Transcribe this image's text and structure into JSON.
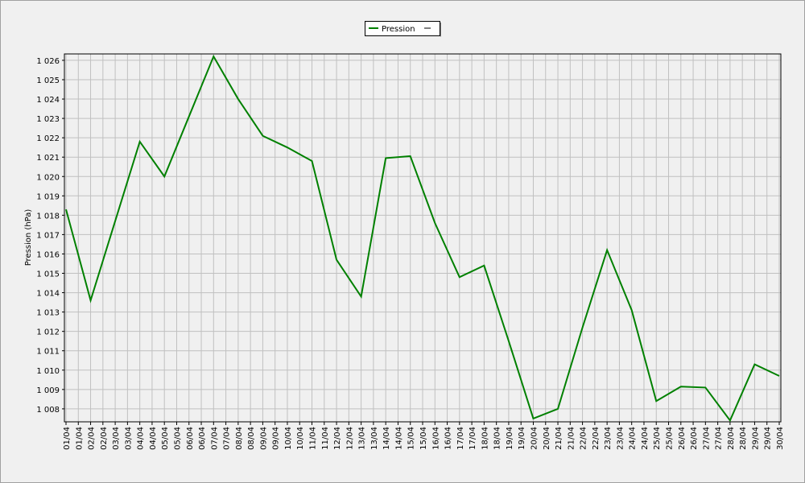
{
  "chart_data": {
    "type": "line",
    "ylabel": "Pression (hPa)",
    "x": [
      "01/04",
      "02/04",
      "03/04",
      "04/04",
      "05/04",
      "06/04",
      "07/04",
      "08/04",
      "09/04",
      "10/04",
      "11/04",
      "12/04",
      "13/04",
      "14/04",
      "15/04",
      "16/04",
      "17/04",
      "18/04",
      "19/04",
      "20/04",
      "21/04",
      "22/04",
      "23/04",
      "24/04",
      "25/04",
      "26/04",
      "27/04",
      "28/04",
      "29/04",
      "30/04"
    ],
    "series": [
      {
        "name": "Pression",
        "color": "#008000",
        "values": [
          1018.3,
          1013.6,
          1017.7,
          1021.8,
          1020.0,
          1023.1,
          1026.2,
          1024.0,
          1022.1,
          1021.5,
          1020.8,
          1015.7,
          1013.8,
          1020.95,
          1021.05,
          1017.6,
          1014.8,
          1015.4,
          1011.5,
          1007.5,
          1008.0,
          1012.2,
          1016.2,
          1013.1,
          1008.4,
          1009.15,
          1009.1,
          1007.4,
          1010.3,
          1009.7
        ]
      }
    ],
    "ylim": [
      1007.33,
      1026.33
    ],
    "yticks": [
      {
        "value": 1008,
        "label": "1 008"
      },
      {
        "value": 1009,
        "label": "1 009"
      },
      {
        "value": 1010,
        "label": "1 010"
      },
      {
        "value": 1011,
        "label": "1 011"
      },
      {
        "value": 1012,
        "label": "1 012"
      },
      {
        "value": 1013,
        "label": "1 013"
      },
      {
        "value": 1014,
        "label": "1 014"
      },
      {
        "value": 1015,
        "label": "1 015"
      },
      {
        "value": 1016,
        "label": "1 016"
      },
      {
        "value": 1017,
        "label": "1 017"
      },
      {
        "value": 1018,
        "label": "1 018"
      },
      {
        "value": 1019,
        "label": "1 019"
      },
      {
        "value": 1020,
        "label": "1 020"
      },
      {
        "value": 1021,
        "label": "1 021"
      },
      {
        "value": 1022,
        "label": "1 022"
      },
      {
        "value": 1023,
        "label": "1 023"
      },
      {
        "value": 1024,
        "label": "1 024"
      },
      {
        "value": 1025,
        "label": "1 025"
      },
      {
        "value": 1026,
        "label": "1 026"
      }
    ],
    "grid": true
  }
}
